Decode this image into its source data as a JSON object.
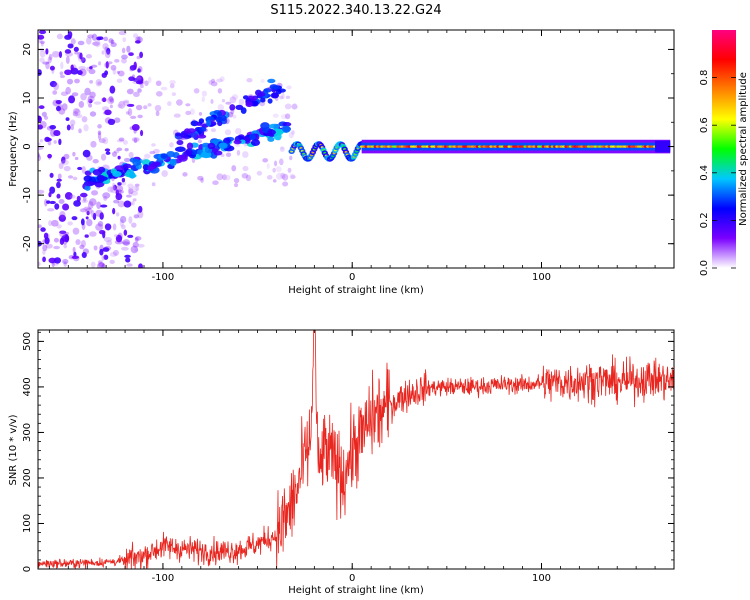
{
  "figure": {
    "title": "S115.2022.340.13.22.G24"
  },
  "chart_data": [
    {
      "type": "heatmap",
      "xlabel": "Height of straight line (km)",
      "ylabel": "Frequency (Hz)",
      "xlim": [
        -166,
        170
      ],
      "ylim": [
        -25,
        24
      ],
      "xticks": [
        -100,
        0,
        100
      ],
      "yticks": [
        -20,
        -10,
        0,
        10,
        20
      ],
      "colorbar": {
        "label": "Normalized spectral amplitude",
        "ticks": [
          0.0,
          0.2,
          0.4,
          0.6,
          0.8
        ],
        "range": [
          0,
          1
        ],
        "colormap": [
          "#ffffff",
          "#7a00ff",
          "#0000ff",
          "#00c8ff",
          "#00ff00",
          "#ffff00",
          "#ff8000",
          "#ff0000",
          "#ff0080"
        ]
      },
      "features": [
        {
          "x": [
            -140,
            -30
          ],
          "y": [
            -8,
            6
          ],
          "amplitude": 0.25
        },
        {
          "x": [
            -90,
            -45
          ],
          "y": [
            -1,
            14
          ],
          "amplitude": 0.2
        },
        {
          "x": [
            -32,
            5
          ],
          "y": [
            -3,
            1.5
          ],
          "amplitude": 0.3
        },
        {
          "x": [
            5,
            168
          ],
          "y": [
            0,
            0
          ],
          "amplitude": 0.65
        }
      ]
    },
    {
      "type": "line",
      "xlabel": "Height of straight line (km)",
      "ylabel": "SNR (10 * v/v)",
      "xlim": [
        -166,
        170
      ],
      "ylim": [
        0,
        525
      ],
      "xticks": [
        -100,
        0,
        100
      ],
      "yticks": [
        0,
        100,
        200,
        300,
        400,
        500
      ],
      "grid": false,
      "line_color": "#e8261f",
      "series": [
        {
          "x": [
            -166,
            -150,
            -130,
            -120,
            -110,
            -100,
            -90,
            -80,
            -70,
            -60,
            -50,
            -40,
            -35,
            -30,
            -25,
            -22,
            -20,
            -18,
            -15,
            -10,
            -5,
            0,
            5,
            10,
            15,
            20,
            25,
            30,
            40,
            50,
            60,
            70,
            80,
            90,
            100,
            110,
            120,
            130,
            140,
            150,
            160,
            170
          ],
          "values": [
            12,
            12,
            15,
            18,
            30,
            50,
            45,
            40,
            38,
            42,
            55,
            75,
            110,
            160,
            240,
            280,
            525,
            210,
            260,
            240,
            200,
            260,
            290,
            330,
            345,
            360,
            375,
            385,
            398,
            400,
            400,
            402,
            405,
            405,
            408,
            410,
            412,
            415,
            410,
            415,
            418,
            410
          ]
        }
      ]
    }
  ]
}
